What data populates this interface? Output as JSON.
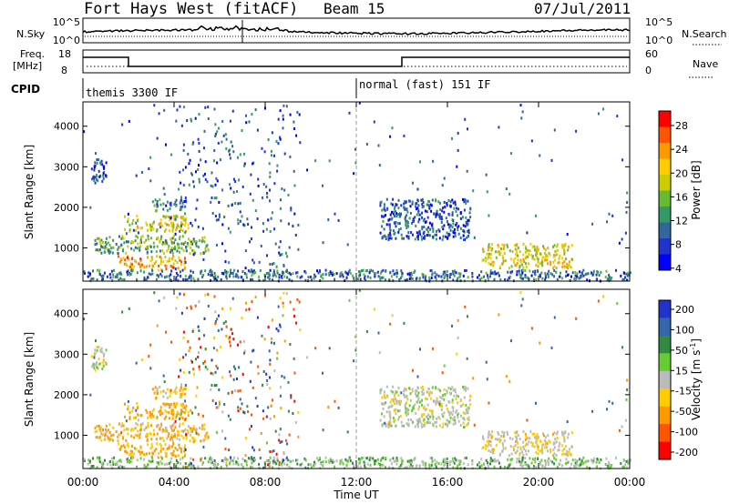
{
  "header": {
    "title": "Fort Hays West (fitACF)",
    "beam": "Beam 15",
    "date": "07/Jul/2011"
  },
  "strips": {
    "nsky_label": "N.Sky",
    "nsky_ticks": [
      "10^5",
      "10^0"
    ],
    "nsearch_label": "N.Search",
    "nsearch_ticks": [
      "10^5",
      "10^0"
    ],
    "freq_label_1": "Freq.",
    "freq_label_2": "[MHz]",
    "freq_ticks": [
      "18",
      "8"
    ],
    "nave_label": "Nave",
    "nave_ticks": [
      "60",
      "0"
    ],
    "cpid_label": "CPID",
    "cpid_segments": [
      "themis 3300 IF",
      "normal (fast) 151 IF"
    ]
  },
  "panels": {
    "ylabel": "Slant Range [km]",
    "yticks": [
      "4000",
      "3000",
      "2000",
      "1000"
    ],
    "xlabel": "Time UT",
    "xticks": [
      "00:00",
      "04:00",
      "08:00",
      "12:00",
      "16:00",
      "20:00",
      "00:00"
    ]
  },
  "power_scale": {
    "label": "Power [dB]",
    "ticks": [
      "28",
      "24",
      "20",
      "16",
      "12",
      "8",
      "4"
    ],
    "colors": [
      "#ff0000",
      "#ff5500",
      "#ff9900",
      "#ffcc00",
      "#cccc00",
      "#66bb33",
      "#339966",
      "#336699",
      "#2233cc",
      "#0000ff"
    ]
  },
  "velocity_scale": {
    "label": "Velocity [m s",
    "label_sup": "-1",
    "label_end": "]",
    "ticks": [
      "200",
      "100",
      "50",
      "15",
      "-15",
      "-50",
      "-100",
      "-200"
    ],
    "colors": [
      "#2233cc",
      "#3366aa",
      "#338844",
      "#66cc33",
      "#bbbbbb",
      "#ffcc00",
      "#ff9900",
      "#ff5500",
      "#ff0000"
    ]
  },
  "chart_data": {
    "type": "heatmap",
    "title": "Fort Hays West (fitACF)",
    "subtitle": "Beam 15",
    "date": "07/Jul/2011",
    "xlabel": "Time UT",
    "ylabel": "Slant Range [km]",
    "xlim_hours": [
      0,
      24
    ],
    "ylim_km": [
      180,
      4600
    ],
    "cpid_change_hour": 12,
    "freq_mhz": {
      "segments": [
        {
          "from": 0,
          "to": 2,
          "value": 12.5
        },
        {
          "from": 2,
          "to": 14,
          "value": 10.5
        },
        {
          "from": 14,
          "to": 24,
          "value": 12.5
        }
      ]
    },
    "power_db_range": [
      0,
      30
    ],
    "velocity_range": [
      -200,
      200
    ],
    "echo_regions": [
      {
        "t0": 1.8,
        "t1": 4.6,
        "r0": 1400,
        "r1": 1800,
        "power": 18,
        "velocity": -40
      },
      {
        "t0": 0.5,
        "t1": 5.5,
        "r0": 850,
        "r1": 1300,
        "power": 12,
        "velocity": -30
      },
      {
        "t0": 1.5,
        "t1": 4.5,
        "r0": 450,
        "r1": 800,
        "power": 22,
        "velocity": -40
      },
      {
        "t0": 0.3,
        "t1": 1.0,
        "r0": 2550,
        "r1": 3200,
        "power": 6,
        "velocity": 0
      },
      {
        "t0": 3.0,
        "t1": 4.5,
        "r0": 1900,
        "r1": 2200,
        "power": 8,
        "velocity": -30
      },
      {
        "t0": 13.0,
        "t1": 17.0,
        "r0": 1200,
        "r1": 2200,
        "power": 6,
        "velocity": 0
      },
      {
        "t0": 17.5,
        "t1": 21.5,
        "r0": 500,
        "r1": 1100,
        "power": 18,
        "velocity": -10
      },
      {
        "t0": 0,
        "t1": 24,
        "r0": 180,
        "r1": 450,
        "power": 8,
        "velocity": 20
      }
    ]
  }
}
